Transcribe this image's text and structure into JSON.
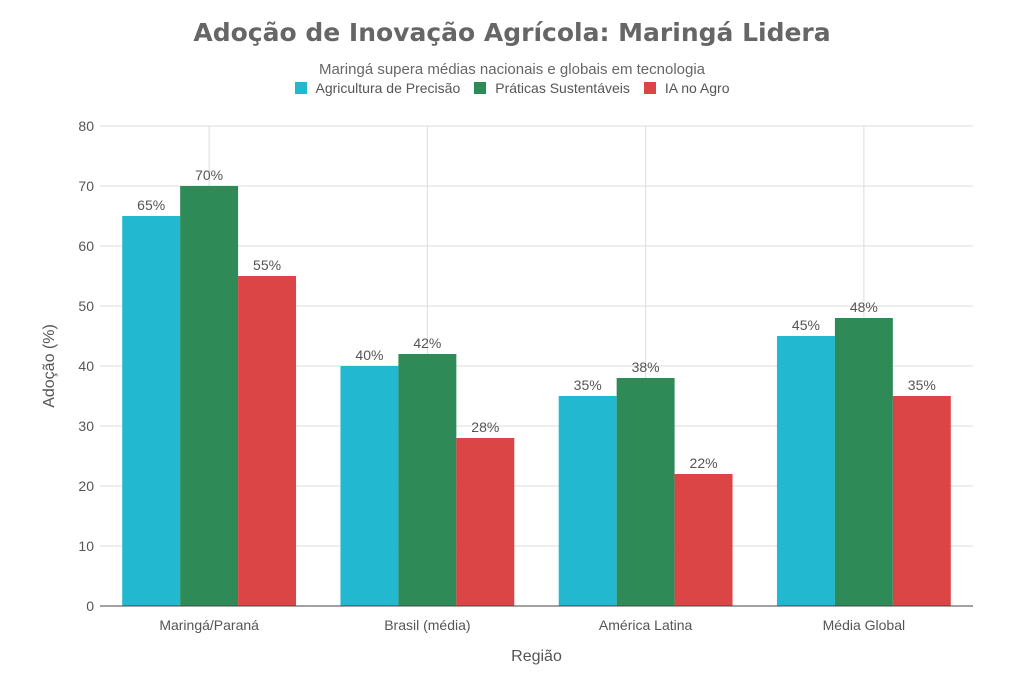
{
  "chart_data": {
    "type": "bar",
    "title": "Adoção de Inovação Agrícola: Maringá Lidera",
    "subtitle": "Maringá supera médias nacionais e globais em tecnologia",
    "xlabel": "Região",
    "ylabel": "Adoção (%)",
    "ylim": [
      0,
      80
    ],
    "yticks": [
      0,
      10,
      20,
      30,
      40,
      50,
      60,
      70,
      80
    ],
    "grid": true,
    "legend_position": "top-center",
    "categories": [
      "Maringá/Paraná",
      "Brasil (média)",
      "América Latina",
      "Média Global"
    ],
    "series": [
      {
        "name": "Agricultura de Precisão",
        "color": "#22B8CF",
        "values": [
          65,
          40,
          35,
          45
        ]
      },
      {
        "name": "Práticas Sustentáveis",
        "color": "#2E8B57",
        "values": [
          70,
          42,
          38,
          48
        ]
      },
      {
        "name": "IA no Agro",
        "color": "#DB4545",
        "values": [
          55,
          28,
          22,
          35
        ]
      }
    ],
    "value_suffix": "%"
  }
}
